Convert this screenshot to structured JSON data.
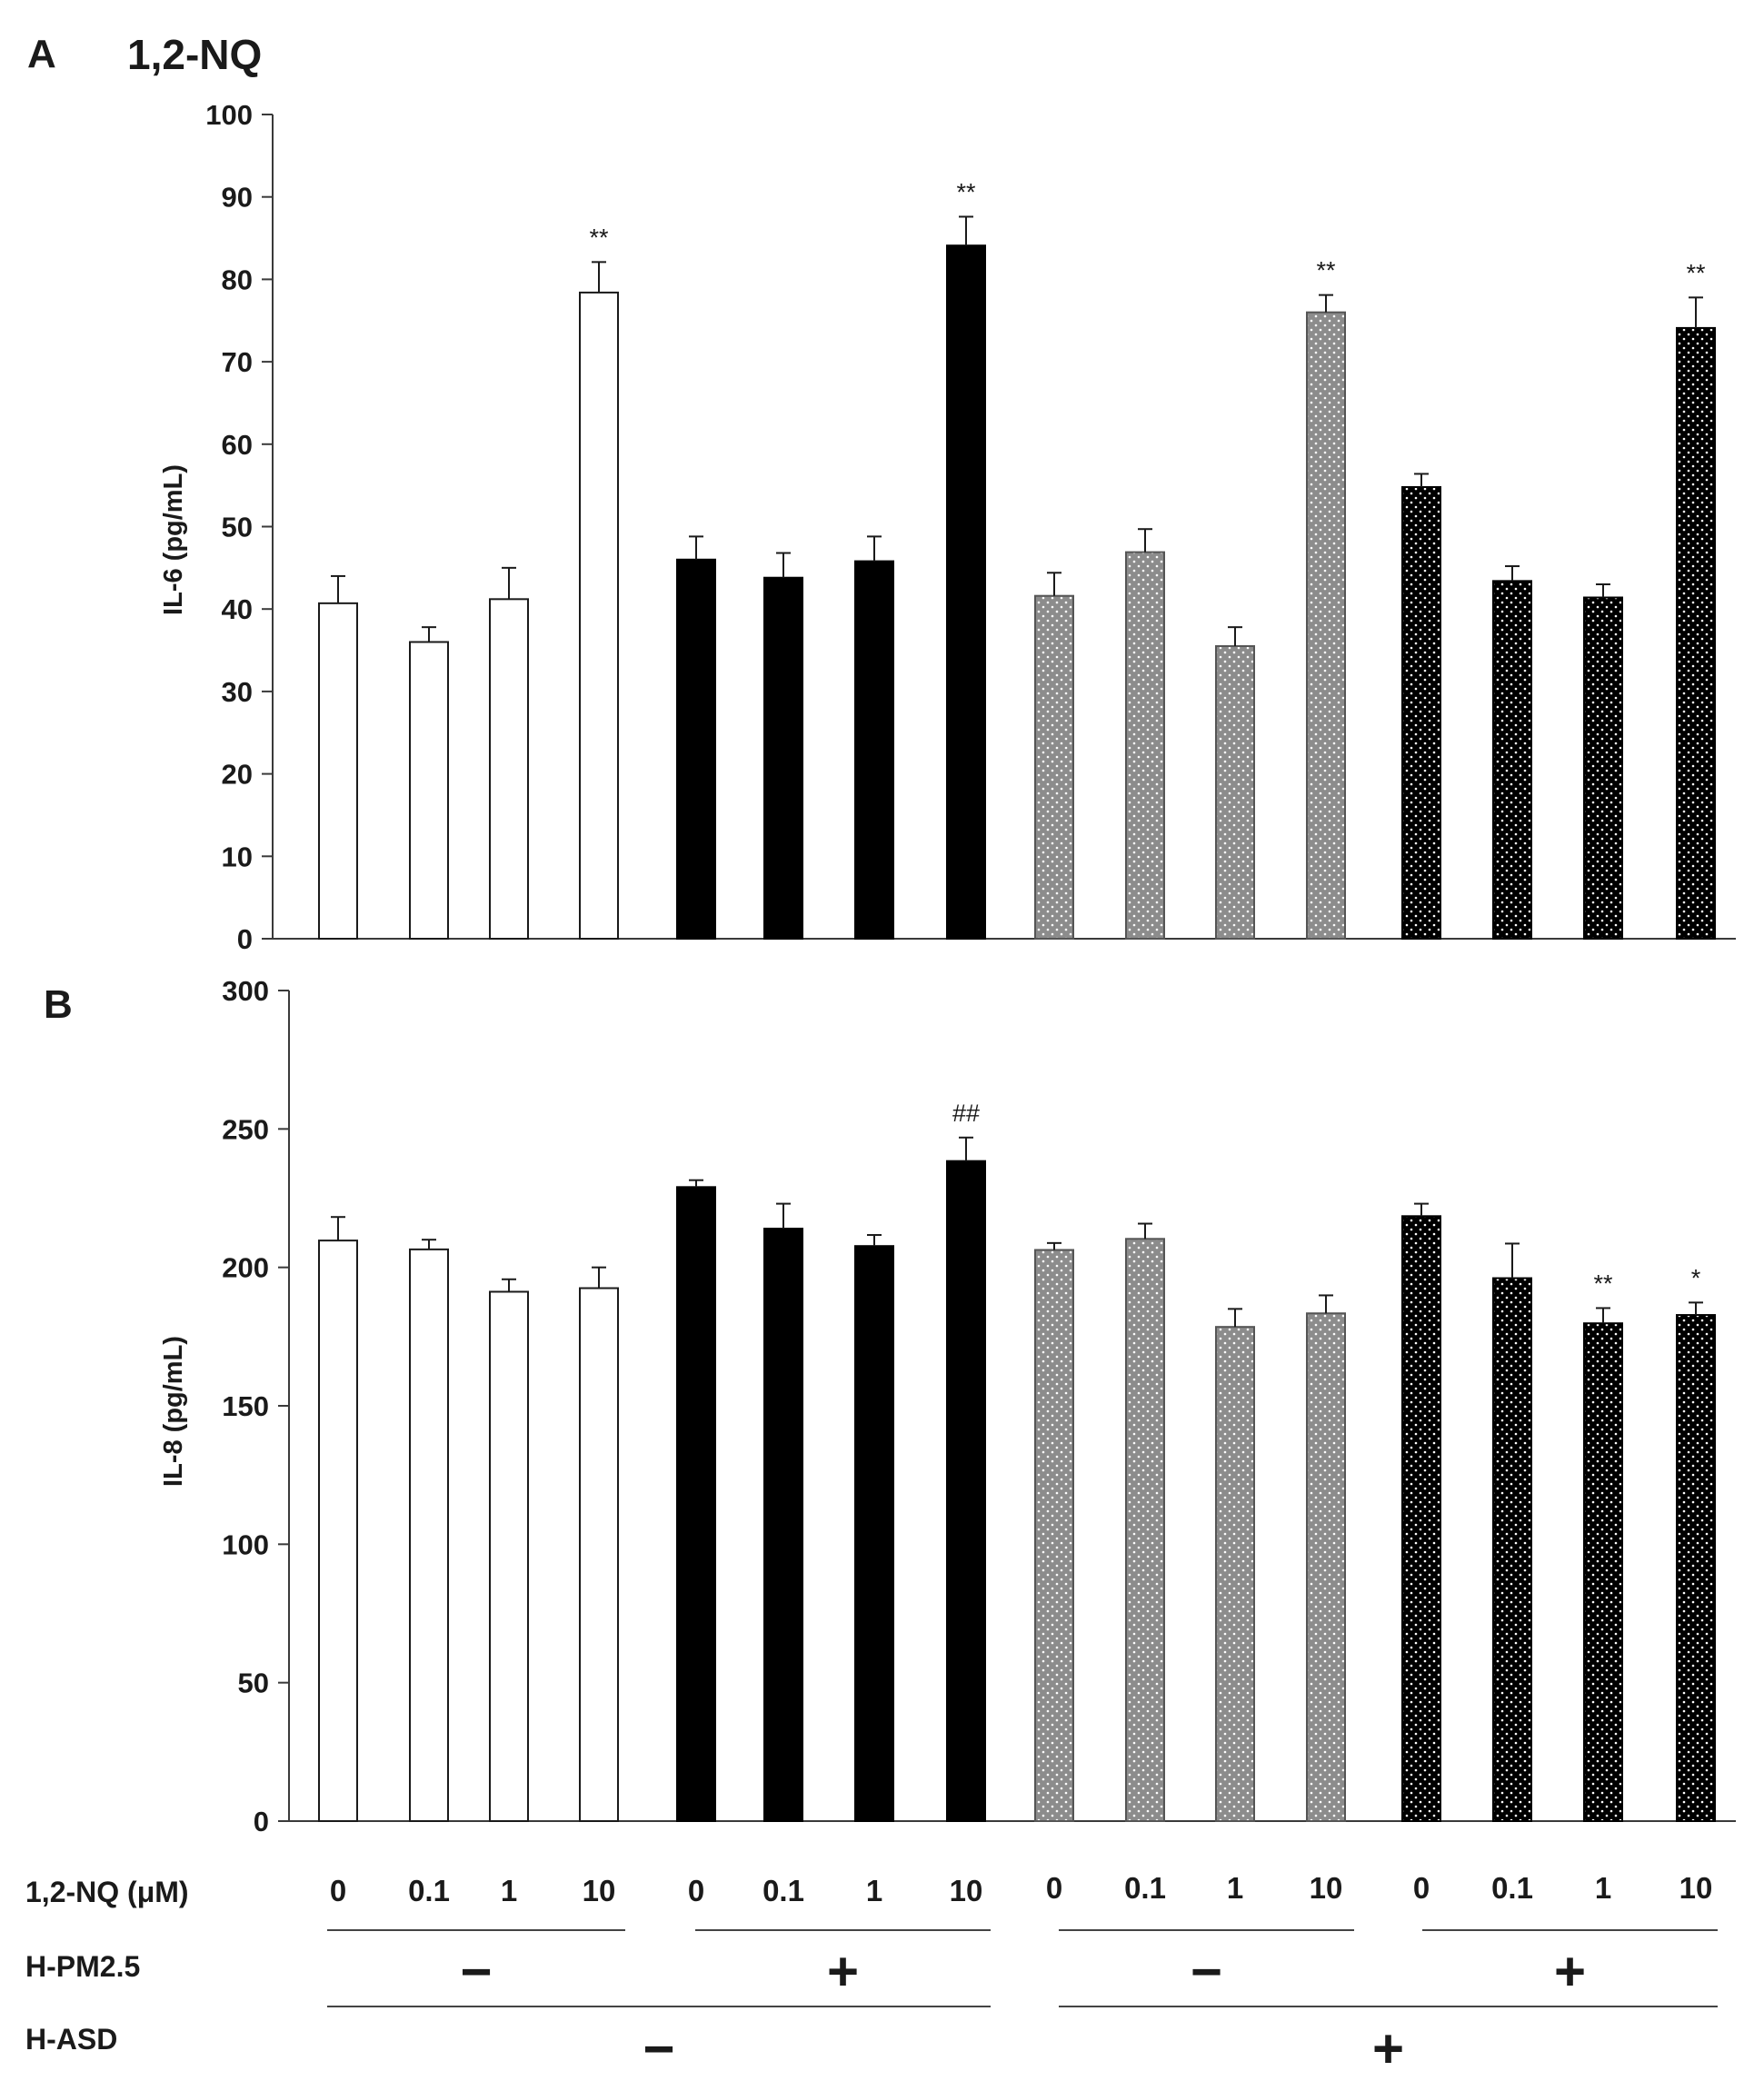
{
  "chart_data": [
    {
      "type": "bar",
      "panel": "A",
      "title": "1,2-NQ",
      "ylabel": "IL-6 (pg/mL)",
      "ylim": [
        0,
        100
      ],
      "yticks": [
        "0",
        "10",
        "20",
        "30",
        "40",
        "50",
        "60",
        "70",
        "80",
        "90",
        "100"
      ],
      "categories": [
        "0",
        "0.1",
        "1",
        "10",
        "0",
        "0.1",
        "1",
        "10",
        "0",
        "0.1",
        "1",
        "10",
        "0",
        "0.1",
        "1",
        "10"
      ],
      "series": [
        {
          "name": "IL-6",
          "values": [
            40.7,
            36.0,
            41.2,
            78.4,
            46.0,
            43.8,
            45.8,
            84.1,
            41.6,
            46.9,
            35.5,
            76.0,
            54.8,
            43.4,
            41.4,
            74.1
          ],
          "errors": [
            3.3,
            1.8,
            3.8,
            3.7,
            2.8,
            3.0,
            3.0,
            3.5,
            2.8,
            2.8,
            2.3,
            2.1,
            1.6,
            1.8,
            1.6,
            3.7
          ]
        }
      ],
      "annotations": [
        "",
        "",
        "",
        "**",
        "",
        "",
        "",
        "**",
        "",
        "",
        "",
        "**",
        "",
        "",
        "",
        "**"
      ],
      "group_styles": [
        "white",
        "black",
        "gray-dotted",
        "black-dotted"
      ]
    },
    {
      "type": "bar",
      "panel": "B",
      "title": "",
      "ylabel": "IL-8 (pg/mL)",
      "ylim": [
        0,
        300
      ],
      "yticks": [
        "0",
        "50",
        "100",
        "150",
        "200",
        "250",
        "300"
      ],
      "categories": [
        "0",
        "0.1",
        "1",
        "10",
        "0",
        "0.1",
        "1",
        "10",
        "0",
        "0.1",
        "1",
        "10",
        "0",
        "0.1",
        "1",
        "10"
      ],
      "series": [
        {
          "name": "IL-8",
          "values": [
            209.7,
            206.5,
            191.2,
            192.5,
            229.0,
            214.0,
            207.7,
            238.4,
            206.3,
            210.3,
            178.5,
            183.4,
            218.5,
            196.1,
            179.8,
            182.8
          ],
          "errors": [
            8.5,
            3.5,
            4.5,
            7.5,
            2.5,
            9.0,
            4.0,
            8.5,
            2.5,
            5.5,
            6.5,
            6.5,
            4.5,
            12.5,
            5.5,
            4.5
          ]
        }
      ],
      "annotations": [
        "",
        "",
        "",
        "",
        "",
        "",
        "",
        "##",
        "",
        "",
        "",
        "",
        "",
        "",
        "**",
        "*"
      ],
      "group_styles": [
        "white",
        "black",
        "gray-dotted",
        "black-dotted"
      ]
    }
  ],
  "conditions": {
    "dose_label": "1,2-NQ (μM)",
    "doses": [
      "0",
      "0.1",
      "1",
      "10",
      "0",
      "0.1",
      "1",
      "10",
      "0",
      "0.1",
      "1",
      "10",
      "0",
      "0.1",
      "1",
      "10"
    ],
    "pm_label": "H-PM2.5",
    "pm_signs": [
      "−",
      "+",
      "−",
      "+"
    ],
    "asd_label": "H-ASD",
    "asd_signs": [
      "−",
      "+"
    ]
  },
  "colors": {
    "black": "#000000",
    "gray": "#8c8c8c",
    "white": "#ffffff",
    "axis": "#3a3a3a"
  }
}
